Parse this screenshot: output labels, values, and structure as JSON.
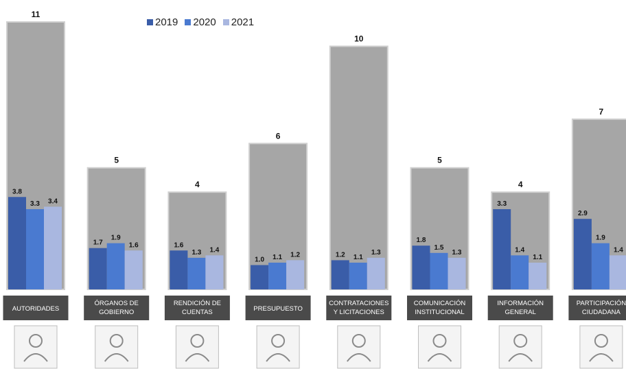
{
  "chart_data": {
    "type": "bar",
    "categories": [
      "AUTORIDADES",
      "ÓRGANOS DE GOBIERNO",
      "RENDICIÓN DE CUENTAS",
      "PRESUPUESTO",
      "CONTRATACIONES Y LICITACIONES",
      "COMUNICACIÓN INSTITUCIONAL",
      "INFORMACIÓN GENERAL",
      "PARTICIPACIÓN CIUDADANA"
    ],
    "category_lines": [
      [
        "AUTORIDADES"
      ],
      [
        "ÓRGANOS DE",
        "GOBIERNO"
      ],
      [
        "RENDICIÓN DE",
        "CUENTAS"
      ],
      [
        "PRESUPUESTO"
      ],
      [
        "CONTRATACIONES",
        "Y LICITACIONES"
      ],
      [
        "COMUNICACIÓN",
        "INSTITUCIONAL"
      ],
      [
        "INFORMACIÓN",
        "GENERAL"
      ],
      [
        "PARTICIPACIÓN",
        "CIUDADANA"
      ]
    ],
    "totals": [
      11,
      5,
      4,
      6,
      10,
      5,
      4,
      7
    ],
    "series": [
      {
        "name": "2019",
        "color": "#3a5da8",
        "values": [
          3.8,
          1.7,
          1.6,
          1.0,
          1.2,
          1.8,
          3.3,
          2.9
        ]
      },
      {
        "name": "2020",
        "color": "#4a7ad0",
        "values": [
          3.3,
          1.9,
          1.3,
          1.1,
          1.1,
          1.5,
          1.4,
          1.9
        ]
      },
      {
        "name": "2021",
        "color": "#a9b7e0",
        "values": [
          3.4,
          1.6,
          1.4,
          1.2,
          1.3,
          1.3,
          1.1,
          1.4
        ]
      }
    ],
    "total_bar_color": "#a6a6a6",
    "label_box_color": "#4a4a4a",
    "icons": [
      "speaker-at-podium-icon",
      "government-building-icon",
      "presentation-board-icon",
      "budget-calculator-icon",
      "handshake-icon",
      "mail-envelope-icon",
      "information-icon",
      "raised-hands-icon"
    ],
    "ylim": [
      0,
      11
    ],
    "legend_position": "top",
    "grid": false
  }
}
